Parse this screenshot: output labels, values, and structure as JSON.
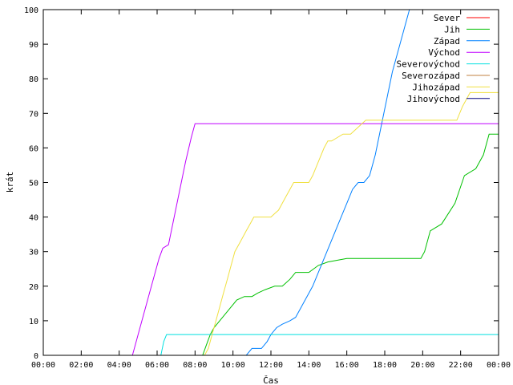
{
  "chart_data": {
    "type": "line",
    "title": "",
    "xlabel": "Čas",
    "ylabel": "krát",
    "xlim": [
      0,
      24
    ],
    "ylim": [
      0,
      100
    ],
    "x_ticks": [
      0,
      2,
      4,
      6,
      8,
      10,
      12,
      14,
      16,
      18,
      20,
      22,
      24
    ],
    "x_tick_labels": [
      "00:00",
      "02:00",
      "04:00",
      "06:00",
      "08:00",
      "10:00",
      "12:00",
      "14:00",
      "16:00",
      "18:00",
      "20:00",
      "22:00",
      "00:00"
    ],
    "y_ticks": [
      0,
      10,
      20,
      30,
      40,
      50,
      60,
      70,
      80,
      90,
      100
    ],
    "y_tick_labels": [
      "0",
      "10",
      "20",
      "30",
      "40",
      "50",
      "60",
      "70",
      "80",
      "90",
      "100"
    ],
    "grid": false,
    "legend_position": "top-right",
    "series": [
      {
        "name": "Sever",
        "color": "#ff0000",
        "x": [],
        "y": []
      },
      {
        "name": "Jih",
        "color": "#00c000",
        "x": [
          0,
          8.4,
          8.6,
          8.8,
          9.0,
          9.3,
          9.6,
          9.9,
          10.2,
          10.6,
          11.0,
          11.3,
          11.7,
          12.2,
          12.6,
          13.0,
          13.3,
          13.6,
          14.0,
          14.5,
          15.0,
          16.0,
          18.0,
          19.9,
          20.1,
          20.4,
          21.0,
          21.7,
          22.2,
          22.8,
          23.2,
          23.5,
          24
        ],
        "y": [
          0,
          0,
          3,
          6,
          8,
          10,
          12,
          14,
          16,
          17,
          17,
          18,
          19,
          20,
          20,
          22,
          24,
          24,
          24,
          26,
          27,
          28,
          28,
          28,
          30,
          36,
          38,
          44,
          52,
          54,
          58,
          64,
          64
        ]
      },
      {
        "name": "Západ",
        "color": "#0080ff",
        "x": [
          0,
          10.7,
          11.0,
          11.5,
          11.8,
          12.0,
          12.3,
          12.6,
          13.0,
          13.3,
          13.6,
          13.9,
          14.2,
          14.5,
          14.8,
          15.1,
          15.4,
          15.7,
          16.0,
          16.3,
          16.6,
          16.9,
          17.2,
          17.5,
          17.8,
          18.1,
          18.4,
          18.7,
          19.0,
          19.3,
          19.5
        ],
        "y": [
          0,
          0,
          2,
          2,
          4,
          6,
          8,
          9,
          10,
          11,
          14,
          17,
          20,
          24,
          28,
          32,
          36,
          40,
          44,
          48,
          50,
          50,
          52,
          58,
          66,
          74,
          82,
          88,
          94,
          100,
          100
        ]
      },
      {
        "name": "Východ",
        "color": "#c000ff",
        "x": [
          0,
          4.7,
          4.8,
          5.0,
          5.3,
          5.6,
          5.9,
          6.1,
          6.3,
          6.6,
          6.9,
          7.2,
          7.5,
          7.8,
          8.0,
          24
        ],
        "y": [
          0,
          0,
          2,
          6,
          12,
          18,
          24,
          28,
          31,
          32,
          40,
          48,
          56,
          63,
          67,
          67
        ]
      },
      {
        "name": "Severovýchod",
        "color": "#00e0e0",
        "x": [
          0,
          6.2,
          6.35,
          6.5,
          24
        ],
        "y": [
          0,
          0,
          4,
          6,
          6
        ]
      },
      {
        "name": "Severozápad",
        "color": "#c08040",
        "x": [],
        "y": []
      },
      {
        "name": "Jihozápad",
        "color": "#f0e040",
        "x": [
          0,
          8.5,
          8.7,
          8.9,
          9.1,
          9.3,
          9.5,
          9.7,
          9.9,
          10.1,
          10.3,
          10.5,
          10.7,
          10.9,
          11.1,
          11.5,
          11.8,
          12.0,
          12.2,
          12.4,
          12.6,
          12.8,
          13.0,
          13.2,
          13.4,
          13.6,
          13.8,
          14.0,
          14.2,
          14.5,
          14.8,
          15.0,
          15.2,
          15.5,
          15.8,
          16.2,
          16.6,
          17.0,
          18.0,
          19.0,
          20.0,
          21.0,
          21.8,
          22.1,
          22.5,
          24
        ],
        "y": [
          0,
          0,
          2,
          6,
          10,
          14,
          18,
          22,
          26,
          30,
          32,
          34,
          36,
          38,
          40,
          40,
          40,
          40,
          41,
          42,
          44,
          46,
          48,
          50,
          50,
          50,
          50,
          50,
          52,
          56,
          60,
          62,
          62,
          63,
          64,
          64,
          66,
          68,
          68,
          68,
          68,
          68,
          68,
          72,
          76,
          76
        ]
      },
      {
        "name": "Jihovýchod",
        "color": "#000080",
        "x": [],
        "y": []
      }
    ]
  }
}
